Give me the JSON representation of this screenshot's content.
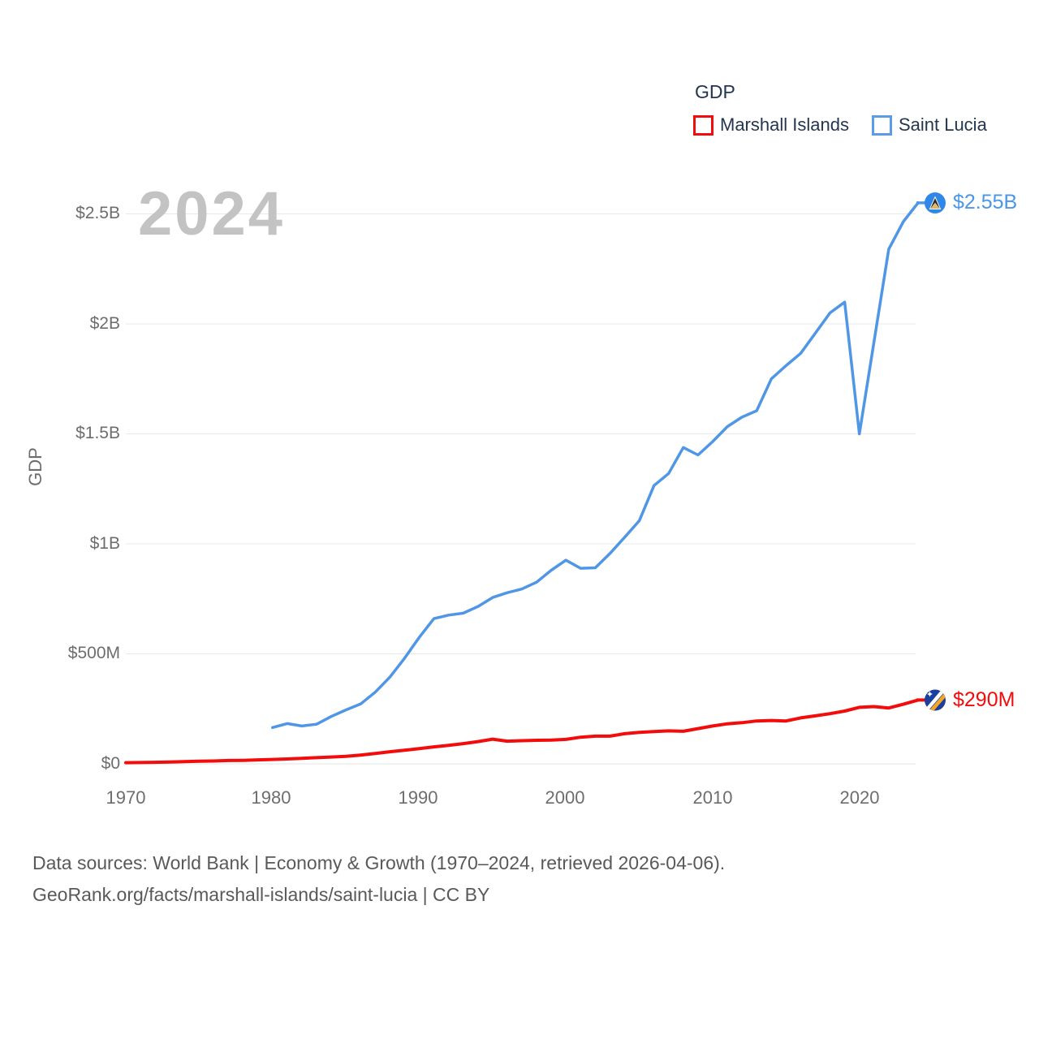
{
  "watermark": "2024",
  "footer": {
    "line1": "Data sources: World Bank | Economy & Growth (1970–2024, retrieved 2026-04-06).",
    "line2": "GeoRank.org/facts/marshall-islands/saint-lucia | CC BY"
  },
  "colors": {
    "marshall_islands": "#f20c0c",
    "saint_lucia": "#4f97e6",
    "saint_lucia_label": "#4a97e8",
    "grid": "#e9e9e9",
    "axis_text": "#6d6d6d",
    "legend_text": "#24364f",
    "watermark": "#c3c3c3",
    "footer_text": "#595959"
  },
  "chart_data": {
    "type": "line",
    "title": "GDP",
    "ylabel": "GDP",
    "units": "USD millions",
    "xlim": [
      1970,
      2024
    ],
    "ylim": [
      0,
      2550
    ],
    "grid": "horizontal",
    "legend_position": "top-right",
    "x_ticks": [
      1970,
      1980,
      1990,
      2000,
      2010,
      2020
    ],
    "y_ticks": [
      {
        "label": "$2.5B",
        "value": 2500
      },
      {
        "label": "$2B",
        "value": 2000
      },
      {
        "label": "$1.5B",
        "value": 1500
      },
      {
        "label": "$1B",
        "value": 1000
      },
      {
        "label": "$500M",
        "value": 500
      },
      {
        "label": "$0",
        "value": 0
      }
    ],
    "series": [
      {
        "name": "Marshall Islands",
        "color": "#f20c0c",
        "end_label": "$290M",
        "end_value_year": 2024,
        "years": [
          1970,
          1971,
          1972,
          1973,
          1974,
          1975,
          1976,
          1977,
          1978,
          1979,
          1980,
          1981,
          1982,
          1983,
          1984,
          1985,
          1986,
          1987,
          1988,
          1989,
          1990,
          1991,
          1992,
          1993,
          1994,
          1995,
          1996,
          1997,
          1998,
          1999,
          2000,
          2001,
          2002,
          2003,
          2004,
          2005,
          2006,
          2007,
          2008,
          2009,
          2010,
          2011,
          2012,
          2013,
          2014,
          2015,
          2016,
          2017,
          2018,
          2019,
          2020,
          2021,
          2022,
          2023,
          2024
        ],
        "values": [
          5,
          6,
          7,
          8,
          10,
          12,
          13,
          15,
          16,
          18,
          20,
          22,
          25,
          28,
          31,
          34,
          40,
          47,
          55,
          62,
          69,
          77,
          84,
          92,
          101,
          112,
          103,
          105,
          107,
          108,
          111,
          121,
          126,
          126,
          137,
          143,
          147,
          150,
          148,
          160,
          172,
          182,
          187,
          195,
          197,
          195,
          209,
          218,
          228,
          240,
          257,
          260,
          254,
          271,
          290
        ]
      },
      {
        "name": "Saint Lucia",
        "color": "#4f97e6",
        "end_label": "$2.55B",
        "end_value_year": 2024,
        "years": [
          1980,
          1981,
          1982,
          1983,
          1984,
          1985,
          1986,
          1987,
          1988,
          1989,
          1990,
          1991,
          1992,
          1993,
          1994,
          1995,
          1996,
          1997,
          1998,
          1999,
          2000,
          2001,
          2002,
          2003,
          2004,
          2005,
          2006,
          2007,
          2008,
          2009,
          2010,
          2011,
          2012,
          2013,
          2014,
          2015,
          2016,
          2017,
          2018,
          2019,
          2020,
          2021,
          2022,
          2023,
          2024
        ],
        "values": [
          165,
          183,
          172,
          180,
          215,
          245,
          272,
          326,
          394,
          480,
          575,
          660,
          676,
          685,
          715,
          756,
          778,
          795,
          826,
          880,
          926,
          889,
          891,
          956,
          1030,
          1105,
          1265,
          1320,
          1438,
          1404,
          1465,
          1533,
          1576,
          1605,
          1750,
          1810,
          1866,
          1958,
          2050,
          2099,
          1500,
          1920,
          2340,
          2465,
          2550
        ]
      }
    ]
  }
}
